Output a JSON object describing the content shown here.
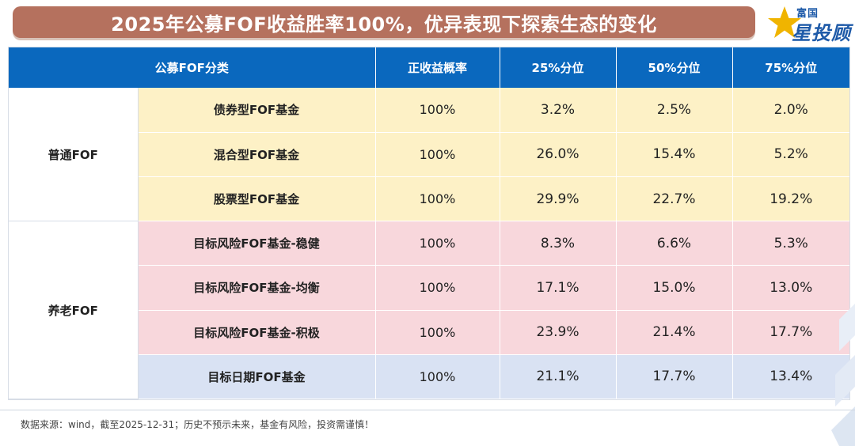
{
  "title": "2025年公募FOF收益胜率100%，优异表现下探索生态的变化",
  "logo": {
    "top": "富国",
    "main": "星投顾",
    "icon": "star-icon"
  },
  "table": {
    "headers": [
      "公募FOF分类",
      "正收益概率",
      "25%分位",
      "50%分位",
      "75%分位"
    ],
    "groups": [
      {
        "name": "普通FOF",
        "color": "#fdf1c6",
        "rows": [
          {
            "name": "债券型FOF基金",
            "rate": "100%",
            "p25": "3.2%",
            "p50": "2.5%",
            "p75": "2.0%"
          },
          {
            "name": "混合型FOF基金",
            "rate": "100%",
            "p25": "26.0%",
            "p50": "15.4%",
            "p75": "5.2%"
          },
          {
            "name": "股票型FOF基金",
            "rate": "100%",
            "p25": "29.9%",
            "p50": "22.7%",
            "p75": "19.2%"
          }
        ]
      },
      {
        "name": "养老FOF",
        "rows": [
          {
            "name": "目标风险FOF基金-稳健",
            "rate": "100%",
            "p25": "8.3%",
            "p50": "6.6%",
            "p75": "5.3%",
            "color": "#f8d7dc"
          },
          {
            "name": "目标风险FOF基金-均衡",
            "rate": "100%",
            "p25": "17.1%",
            "p50": "15.0%",
            "p75": "13.0%",
            "color": "#f8d7dc"
          },
          {
            "name": "目标风险FOF基金-积极",
            "rate": "100%",
            "p25": "23.9%",
            "p50": "21.4%",
            "p75": "17.7%",
            "color": "#f8d7dc"
          },
          {
            "name": "目标日期FOF基金",
            "rate": "100%",
            "p25": "21.1%",
            "p50": "17.7%",
            "p75": "13.4%",
            "color": "#d9e2f3"
          }
        ]
      }
    ]
  },
  "footer": "数据来源：wind，截至2025-12-31；历史不预示未来，基金有风险，投资需谨慎！",
  "colors": {
    "header_blue": "#0a68be",
    "title_brown": "#b5715e",
    "brand_blue": "#1e5aa8"
  }
}
